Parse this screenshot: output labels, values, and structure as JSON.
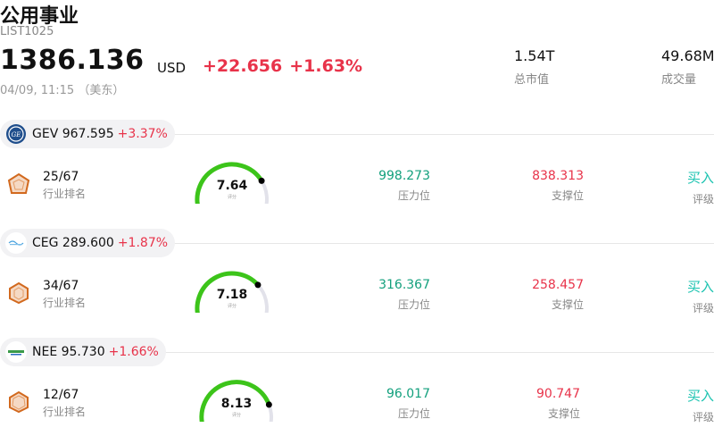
{
  "header": {
    "title": "公用事业",
    "code": "LIST1025",
    "price": "1386.136",
    "currency": "USD",
    "change": "+22.656",
    "change_pct": "+1.63%",
    "time": "04/09, 11:15 （美东）"
  },
  "stats": {
    "market_cap": {
      "value": "1.54T",
      "label": "总市值"
    },
    "volume": {
      "value": "49.68M",
      "label": "成交量"
    }
  },
  "stocks": [
    {
      "ticker": "GEV 967.595",
      "change_pct": "+3.37%",
      "logo": "ge-vernova-logo",
      "rank": "25/67",
      "rank_label": "行业排名",
      "score": "7.64",
      "score_label": "评分",
      "score_fraction": 0.764,
      "resistance": "998.273",
      "resistance_label": "压力位",
      "support": "838.313",
      "support_label": "支撑位",
      "rating": "买入",
      "rating_label": "评级"
    },
    {
      "ticker": "CEG 289.600",
      "change_pct": "+1.87%",
      "logo": "constellation-logo",
      "rank": "34/67",
      "rank_label": "行业排名",
      "score": "7.18",
      "score_label": "评分",
      "score_fraction": 0.718,
      "resistance": "316.367",
      "resistance_label": "压力位",
      "support": "258.457",
      "support_label": "支撑位",
      "rating": "买入",
      "rating_label": "评级"
    },
    {
      "ticker": "NEE 95.730",
      "change_pct": "+1.66%",
      "logo": "nextera-logo",
      "rank": "12/67",
      "rank_label": "行业排名",
      "score": "8.13",
      "score_label": "评分",
      "score_fraction": 0.813,
      "resistance": "96.017",
      "resistance_label": "压力位",
      "support": "90.747",
      "support_label": "支撑位",
      "rating": "买入",
      "rating_label": "评级"
    }
  ],
  "colors": {
    "up": "#e8334a",
    "resistance": "#13a07d",
    "rating": "#1bc3b0",
    "gauge_green": "#3cc41a",
    "gauge_track": "#e2e2ea",
    "rank_icon": "#d2691e"
  }
}
